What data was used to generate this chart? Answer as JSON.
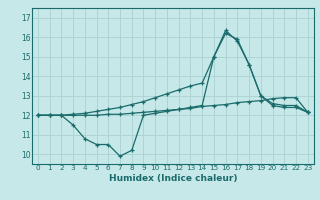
{
  "title": "",
  "xlabel": "Humidex (Indice chaleur)",
  "ylabel": "",
  "bg_color": "#c6e8e8",
  "grid_color": "#aed4d4",
  "line_color": "#1a6b6b",
  "xlim": [
    -0.5,
    23.5
  ],
  "ylim": [
    9.5,
    17.5
  ],
  "xticks": [
    0,
    1,
    2,
    3,
    4,
    5,
    6,
    7,
    8,
    9,
    10,
    11,
    12,
    13,
    14,
    15,
    16,
    17,
    18,
    19,
    20,
    21,
    22,
    23
  ],
  "yticks": [
    10,
    11,
    12,
    13,
    14,
    15,
    16,
    17
  ],
  "line1_x": [
    0,
    1,
    2,
    3,
    4,
    5,
    6,
    7,
    8,
    9,
    10,
    11,
    12,
    13,
    14,
    15,
    16,
    17,
    18,
    19,
    20,
    21,
    22,
    23
  ],
  "line1_y": [
    12.0,
    12.0,
    12.0,
    12.0,
    12.0,
    12.0,
    12.05,
    12.05,
    12.1,
    12.15,
    12.2,
    12.25,
    12.3,
    12.35,
    12.45,
    12.5,
    12.55,
    12.65,
    12.7,
    12.75,
    12.85,
    12.9,
    12.9,
    12.15
  ],
  "line2_x": [
    0,
    1,
    2,
    3,
    4,
    5,
    6,
    7,
    8,
    9,
    10,
    11,
    12,
    13,
    14,
    15,
    16,
    17,
    18,
    19,
    20,
    21,
    22,
    23
  ],
  "line2_y": [
    12.0,
    12.0,
    12.0,
    12.05,
    12.1,
    12.2,
    12.3,
    12.4,
    12.55,
    12.7,
    12.9,
    13.1,
    13.3,
    13.5,
    13.65,
    15.0,
    16.35,
    15.8,
    14.6,
    13.0,
    12.6,
    12.5,
    12.5,
    12.15
  ],
  "line3_x": [
    0,
    1,
    2,
    3,
    4,
    5,
    6,
    7,
    8,
    9,
    10,
    11,
    12,
    13,
    14,
    15,
    16,
    17,
    18,
    19,
    20,
    21,
    22,
    23
  ],
  "line3_y": [
    12.0,
    12.0,
    12.0,
    11.5,
    10.8,
    10.5,
    10.5,
    9.9,
    10.2,
    12.0,
    12.1,
    12.2,
    12.3,
    12.4,
    12.5,
    15.0,
    16.2,
    15.9,
    14.6,
    13.0,
    12.5,
    12.4,
    12.4,
    12.15
  ]
}
